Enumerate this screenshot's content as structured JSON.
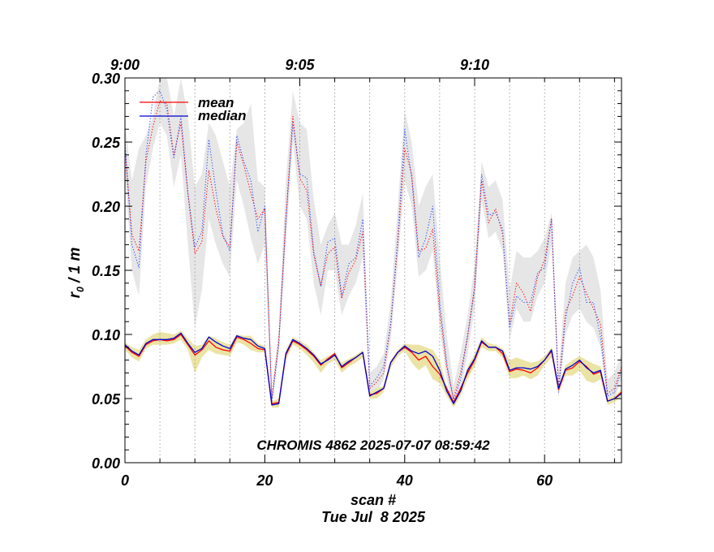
{
  "chart_data": {
    "type": "line",
    "title": "",
    "annotation": "CHROMIS 4862 2025-07-07 08:59:42",
    "xlabel": "scan #",
    "xlabel2": "Tue Jul  8 2025",
    "ylabel_main": "r",
    "ylabel_sub": "0",
    "ylabel_rest": " / 1 m",
    "xlim": [
      0,
      71
    ],
    "ylim": [
      0,
      0.3
    ],
    "x_ticks": [
      0,
      20,
      40,
      60
    ],
    "x_tick_labels": [
      "0",
      "20",
      "40",
      "60"
    ],
    "y_ticks": [
      0,
      0.05,
      0.1,
      0.15,
      0.2,
      0.25,
      0.3
    ],
    "y_tick_labels": [
      "0.00",
      "0.05",
      "0.10",
      "0.15",
      "0.20",
      "0.25",
      "0.30"
    ],
    "top_axis": {
      "ticks": [
        0,
        25,
        50
      ],
      "labels": [
        "9:00",
        "9:05",
        "9:10"
      ]
    },
    "time_gridlines": [
      5,
      10,
      15,
      20,
      25,
      30,
      35,
      40,
      45,
      50,
      55,
      60,
      65,
      70
    ],
    "legend": {
      "position": "top-left",
      "entries": [
        "mean",
        "median"
      ]
    },
    "colors": {
      "mean": "#ff0000",
      "median": "#0000cc",
      "upper_median_dotted": "#2a4dff",
      "upper_band": "#e6e6e6",
      "lower_band": "#ebe3a4"
    },
    "series": [
      {
        "name": "upper_mean",
        "style": "dotted",
        "x": [
          0,
          1,
          2,
          3,
          4,
          5,
          6,
          7,
          8,
          9,
          10,
          11,
          12,
          13,
          14,
          15,
          16,
          17,
          18,
          19,
          20,
          21,
          22,
          23,
          24,
          25,
          26,
          27,
          28,
          29,
          30,
          31,
          32,
          33,
          34,
          35,
          36,
          37,
          38,
          39,
          40,
          41,
          42,
          43,
          44,
          45,
          46,
          47,
          48,
          49,
          50,
          51,
          52,
          53,
          54,
          55,
          56,
          57,
          58,
          59,
          60,
          61,
          62,
          63,
          64,
          65,
          66,
          67,
          68,
          69,
          70,
          71
        ],
        "values": [
          0.245,
          0.178,
          0.165,
          0.235,
          0.262,
          0.282,
          0.28,
          0.24,
          0.265,
          0.21,
          0.163,
          0.172,
          0.228,
          0.198,
          0.176,
          0.168,
          0.25,
          0.232,
          0.21,
          0.19,
          0.198,
          0.05,
          0.095,
          0.19,
          0.27,
          0.222,
          0.212,
          0.162,
          0.138,
          0.163,
          0.168,
          0.128,
          0.148,
          0.158,
          0.18,
          0.058,
          0.063,
          0.07,
          0.107,
          0.17,
          0.245,
          0.225,
          0.165,
          0.167,
          0.182,
          0.118,
          0.075,
          0.05,
          0.07,
          0.098,
          0.138,
          0.22,
          0.187,
          0.198,
          0.178,
          0.108,
          0.14,
          0.132,
          0.118,
          0.145,
          0.158,
          0.19,
          0.058,
          0.118,
          0.13,
          0.145,
          0.132,
          0.12,
          0.108,
          0.054,
          0.058,
          0.075
        ]
      },
      {
        "name": "upper_median",
        "style": "dotted",
        "x": [
          0,
          1,
          2,
          3,
          4,
          5,
          6,
          7,
          8,
          9,
          10,
          11,
          12,
          13,
          14,
          15,
          16,
          17,
          18,
          19,
          20,
          21,
          22,
          23,
          24,
          25,
          26,
          27,
          28,
          29,
          30,
          31,
          32,
          33,
          34,
          35,
          36,
          37,
          38,
          39,
          40,
          41,
          42,
          43,
          44,
          45,
          46,
          47,
          48,
          49,
          50,
          51,
          52,
          53,
          54,
          55,
          56,
          57,
          58,
          59,
          60,
          61,
          62,
          63,
          64,
          65,
          66,
          67,
          68,
          69,
          70,
          71
        ],
        "values": [
          0.25,
          0.17,
          0.152,
          0.24,
          0.285,
          0.29,
          0.275,
          0.237,
          0.27,
          0.21,
          0.168,
          0.18,
          0.252,
          0.212,
          0.178,
          0.165,
          0.255,
          0.235,
          0.22,
          0.18,
          0.2,
          0.048,
          0.092,
          0.188,
          0.265,
          0.225,
          0.222,
          0.165,
          0.137,
          0.172,
          0.175,
          0.13,
          0.155,
          0.16,
          0.19,
          0.06,
          0.066,
          0.075,
          0.108,
          0.175,
          0.26,
          0.222,
          0.16,
          0.175,
          0.2,
          0.125,
          0.078,
          0.048,
          0.065,
          0.1,
          0.135,
          0.225,
          0.193,
          0.195,
          0.182,
          0.105,
          0.13,
          0.125,
          0.125,
          0.148,
          0.152,
          0.19,
          0.055,
          0.112,
          0.14,
          0.152,
          0.125,
          0.125,
          0.098,
          0.052,
          0.055,
          0.072
        ]
      },
      {
        "name": "upper_band_high",
        "x": [
          0,
          1,
          2,
          3,
          4,
          5,
          6,
          7,
          8,
          9,
          10,
          11,
          12,
          13,
          14,
          15,
          16,
          17,
          18,
          19,
          20,
          21,
          22,
          23,
          24,
          25,
          26,
          27,
          28,
          29,
          30,
          31,
          32,
          33,
          34,
          35,
          36,
          37,
          38,
          39,
          40,
          41,
          42,
          43,
          44,
          45,
          46,
          47,
          48,
          49,
          50,
          51,
          52,
          53,
          54,
          55,
          56,
          57,
          58,
          59,
          60,
          61,
          62,
          63,
          64,
          65,
          66,
          67,
          68,
          69,
          70,
          71
        ],
        "values": [
          0.265,
          0.22,
          0.245,
          0.255,
          0.27,
          0.3,
          0.3,
          0.27,
          0.3,
          0.27,
          0.215,
          0.225,
          0.265,
          0.255,
          0.235,
          0.215,
          0.26,
          0.265,
          0.28,
          0.22,
          0.215,
          0.055,
          0.105,
          0.22,
          0.29,
          0.265,
          0.26,
          0.205,
          0.17,
          0.185,
          0.195,
          0.17,
          0.17,
          0.185,
          0.21,
          0.07,
          0.075,
          0.085,
          0.125,
          0.2,
          0.275,
          0.25,
          0.2,
          0.215,
          0.225,
          0.16,
          0.1,
          0.06,
          0.085,
          0.115,
          0.155,
          0.235,
          0.215,
          0.22,
          0.205,
          0.135,
          0.165,
          0.16,
          0.16,
          0.165,
          0.175,
          0.195,
          0.07,
          0.14,
          0.16,
          0.165,
          0.17,
          0.16,
          0.135,
          0.065,
          0.07,
          0.085
        ]
      },
      {
        "name": "upper_band_low",
        "x": [
          0,
          1,
          2,
          3,
          4,
          5,
          6,
          7,
          8,
          9,
          10,
          11,
          12,
          13,
          14,
          15,
          16,
          17,
          18,
          19,
          20,
          21,
          22,
          23,
          24,
          25,
          26,
          27,
          28,
          29,
          30,
          31,
          32,
          33,
          34,
          35,
          36,
          37,
          38,
          39,
          40,
          41,
          42,
          43,
          44,
          45,
          46,
          47,
          48,
          49,
          50,
          51,
          52,
          53,
          54,
          55,
          56,
          57,
          58,
          59,
          60,
          61,
          62,
          63,
          64,
          65,
          66,
          67,
          68,
          69,
          70,
          71
        ],
        "values": [
          0.225,
          0.15,
          0.13,
          0.215,
          0.245,
          0.265,
          0.255,
          0.215,
          0.24,
          0.17,
          0.105,
          0.135,
          0.19,
          0.17,
          0.155,
          0.145,
          0.22,
          0.2,
          0.175,
          0.155,
          0.17,
          0.044,
          0.088,
          0.17,
          0.25,
          0.2,
          0.19,
          0.14,
          0.115,
          0.15,
          0.15,
          0.115,
          0.13,
          0.14,
          0.16,
          0.05,
          0.055,
          0.065,
          0.095,
          0.155,
          0.22,
          0.2,
          0.145,
          0.15,
          0.165,
          0.105,
          0.065,
          0.044,
          0.055,
          0.085,
          0.12,
          0.205,
          0.175,
          0.18,
          0.165,
          0.095,
          0.12,
          0.11,
          0.11,
          0.13,
          0.14,
          0.17,
          0.05,
          0.1,
          0.115,
          0.12,
          0.11,
          0.105,
          0.09,
          0.048,
          0.05,
          0.065
        ]
      },
      {
        "name": "mean",
        "x": [
          0,
          1,
          2,
          3,
          4,
          5,
          6,
          7,
          8,
          9,
          10,
          11,
          12,
          13,
          14,
          15,
          16,
          17,
          18,
          19,
          20,
          21,
          22,
          23,
          24,
          25,
          26,
          27,
          28,
          29,
          30,
          31,
          32,
          33,
          34,
          35,
          36,
          37,
          38,
          39,
          40,
          41,
          42,
          43,
          44,
          45,
          46,
          47,
          48,
          49,
          50,
          51,
          52,
          53,
          54,
          55,
          56,
          57,
          58,
          59,
          60,
          61,
          62,
          63,
          64,
          65,
          66,
          67,
          68,
          69,
          70,
          71
        ],
        "values": [
          0.091,
          0.086,
          0.083,
          0.092,
          0.095,
          0.096,
          0.095,
          0.096,
          0.1,
          0.092,
          0.084,
          0.088,
          0.095,
          0.09,
          0.088,
          0.087,
          0.098,
          0.096,
          0.093,
          0.089,
          0.088,
          0.046,
          0.047,
          0.084,
          0.095,
          0.092,
          0.088,
          0.083,
          0.076,
          0.081,
          0.085,
          0.074,
          0.078,
          0.082,
          0.086,
          0.053,
          0.054,
          0.058,
          0.078,
          0.086,
          0.09,
          0.086,
          0.08,
          0.083,
          0.075,
          0.069,
          0.058,
          0.047,
          0.058,
          0.07,
          0.08,
          0.094,
          0.09,
          0.09,
          0.085,
          0.071,
          0.073,
          0.072,
          0.07,
          0.074,
          0.08,
          0.087,
          0.057,
          0.072,
          0.074,
          0.079,
          0.075,
          0.069,
          0.071,
          0.048,
          0.05,
          0.055
        ]
      },
      {
        "name": "median",
        "x": [
          0,
          1,
          2,
          3,
          4,
          5,
          6,
          7,
          8,
          9,
          10,
          11,
          12,
          13,
          14,
          15,
          16,
          17,
          18,
          19,
          20,
          21,
          22,
          23,
          24,
          25,
          26,
          27,
          28,
          29,
          30,
          31,
          32,
          33,
          34,
          35,
          36,
          37,
          38,
          39,
          40,
          41,
          42,
          43,
          44,
          45,
          46,
          47,
          48,
          49,
          50,
          51,
          52,
          53,
          54,
          55,
          56,
          57,
          58,
          59,
          60,
          61,
          62,
          63,
          64,
          65,
          66,
          67,
          68,
          69,
          70,
          71
        ],
        "values": [
          0.092,
          0.087,
          0.084,
          0.093,
          0.096,
          0.096,
          0.096,
          0.097,
          0.101,
          0.093,
          0.086,
          0.089,
          0.098,
          0.094,
          0.091,
          0.089,
          0.099,
          0.097,
          0.096,
          0.091,
          0.089,
          0.045,
          0.046,
          0.085,
          0.096,
          0.093,
          0.089,
          0.084,
          0.077,
          0.08,
          0.084,
          0.075,
          0.079,
          0.082,
          0.086,
          0.052,
          0.055,
          0.058,
          0.078,
          0.086,
          0.091,
          0.087,
          0.085,
          0.087,
          0.083,
          0.072,
          0.056,
          0.046,
          0.056,
          0.072,
          0.081,
          0.095,
          0.09,
          0.09,
          0.087,
          0.072,
          0.074,
          0.074,
          0.073,
          0.075,
          0.08,
          0.088,
          0.058,
          0.073,
          0.076,
          0.08,
          0.074,
          0.07,
          0.072,
          0.048,
          0.05,
          0.054
        ]
      },
      {
        "name": "lower_band_high",
        "x": [
          0,
          1,
          2,
          3,
          4,
          5,
          6,
          7,
          8,
          9,
          10,
          11,
          12,
          13,
          14,
          15,
          16,
          17,
          18,
          19,
          20,
          21,
          22,
          23,
          24,
          25,
          26,
          27,
          28,
          29,
          30,
          31,
          32,
          33,
          34,
          35,
          36,
          37,
          38,
          39,
          40,
          41,
          42,
          43,
          44,
          45,
          46,
          47,
          48,
          49,
          50,
          51,
          52,
          53,
          54,
          55,
          56,
          57,
          58,
          59,
          60,
          61,
          62,
          63,
          64,
          65,
          66,
          67,
          68,
          69,
          70,
          71
        ],
        "values": [
          0.094,
          0.09,
          0.088,
          0.096,
          0.1,
          0.102,
          0.101,
          0.1,
          0.103,
          0.097,
          0.091,
          0.092,
          0.099,
          0.097,
          0.094,
          0.092,
          0.1,
          0.099,
          0.099,
          0.093,
          0.091,
          0.048,
          0.05,
          0.088,
          0.098,
          0.095,
          0.092,
          0.086,
          0.08,
          0.083,
          0.086,
          0.078,
          0.081,
          0.084,
          0.088,
          0.055,
          0.058,
          0.06,
          0.08,
          0.088,
          0.093,
          0.092,
          0.092,
          0.09,
          0.088,
          0.08,
          0.06,
          0.048,
          0.06,
          0.075,
          0.085,
          0.098,
          0.093,
          0.092,
          0.089,
          0.08,
          0.082,
          0.08,
          0.078,
          0.079,
          0.083,
          0.09,
          0.06,
          0.076,
          0.08,
          0.083,
          0.08,
          0.077,
          0.075,
          0.05,
          0.052,
          0.057
        ]
      },
      {
        "name": "lower_band_low",
        "x": [
          0,
          1,
          2,
          3,
          4,
          5,
          6,
          7,
          8,
          9,
          10,
          11,
          12,
          13,
          14,
          15,
          16,
          17,
          18,
          19,
          20,
          21,
          22,
          23,
          24,
          25,
          26,
          27,
          28,
          29,
          30,
          31,
          32,
          33,
          34,
          35,
          36,
          37,
          38,
          39,
          40,
          41,
          42,
          43,
          44,
          45,
          46,
          47,
          48,
          49,
          50,
          51,
          52,
          53,
          54,
          55,
          56,
          57,
          58,
          59,
          60,
          61,
          62,
          63,
          64,
          65,
          66,
          67,
          68,
          69,
          70,
          71
        ],
        "values": [
          0.088,
          0.082,
          0.079,
          0.089,
          0.092,
          0.092,
          0.092,
          0.093,
          0.096,
          0.088,
          0.07,
          0.082,
          0.088,
          0.085,
          0.084,
          0.083,
          0.094,
          0.092,
          0.088,
          0.086,
          0.086,
          0.043,
          0.043,
          0.08,
          0.092,
          0.089,
          0.084,
          0.078,
          0.07,
          0.077,
          0.08,
          0.07,
          0.075,
          0.078,
          0.082,
          0.05,
          0.05,
          0.055,
          0.074,
          0.083,
          0.087,
          0.078,
          0.072,
          0.076,
          0.065,
          0.062,
          0.052,
          0.043,
          0.052,
          0.065,
          0.075,
          0.09,
          0.087,
          0.087,
          0.082,
          0.066,
          0.066,
          0.068,
          0.065,
          0.068,
          0.076,
          0.082,
          0.054,
          0.068,
          0.068,
          0.072,
          0.064,
          0.062,
          0.065,
          0.045,
          0.047,
          0.052
        ]
      }
    ]
  }
}
